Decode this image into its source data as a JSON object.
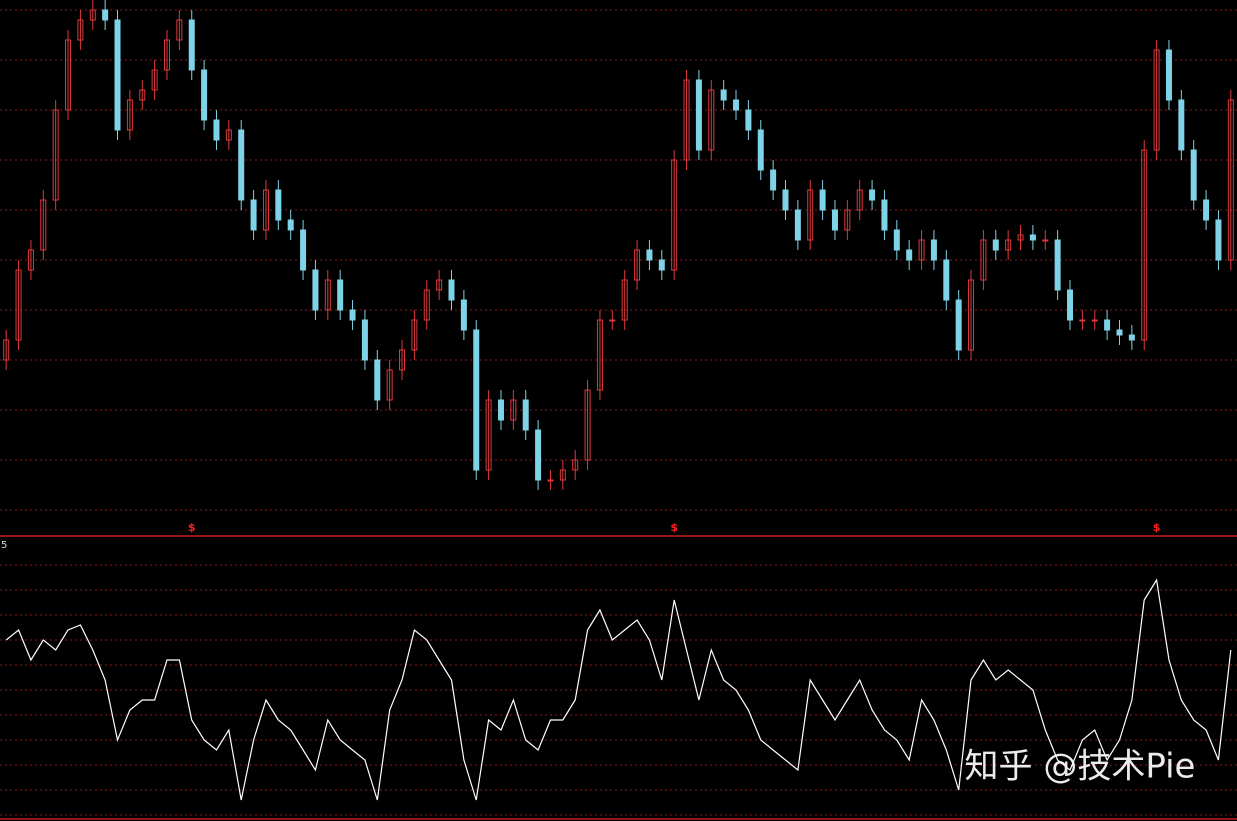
{
  "chart_data": [
    {
      "type": "candlestick",
      "ylim": [
        0,
        107
      ],
      "yticks": [
        5,
        15,
        25,
        35,
        45,
        55,
        65,
        75,
        85,
        95,
        105
      ],
      "grid": true,
      "up_color": "#e0393c",
      "down_color": "#7fd3e6",
      "marker_color": "#ff2020",
      "open": [
        35,
        39,
        53,
        57,
        67,
        85,
        99,
        103,
        105,
        103,
        81,
        87,
        89,
        93,
        99,
        103,
        93,
        83,
        79,
        81,
        67,
        61,
        69,
        63,
        61,
        53,
        45,
        51,
        45,
        43,
        35,
        27,
        33,
        37,
        43,
        49,
        51,
        47,
        41,
        13,
        27,
        23,
        27,
        21,
        11,
        11,
        13,
        15,
        29,
        43,
        43,
        51,
        57,
        55,
        53,
        75,
        91,
        77,
        89,
        87,
        85,
        81,
        73,
        69,
        65,
        59,
        69,
        65,
        61,
        65,
        69,
        67,
        61,
        57,
        55,
        59,
        55,
        47,
        37,
        51,
        59,
        57,
        59,
        60,
        59,
        59,
        49,
        43,
        43,
        43,
        41,
        40,
        39,
        77,
        97,
        87,
        77,
        67,
        63,
        55
      ],
      "high": [
        41,
        55,
        59,
        69,
        87,
        101,
        105,
        107,
        107,
        105,
        89,
        91,
        95,
        101,
        105,
        105,
        95,
        85,
        83,
        83,
        69,
        71,
        71,
        65,
        63,
        55,
        53,
        53,
        47,
        45,
        37,
        35,
        39,
        45,
        51,
        53,
        53,
        49,
        43,
        29,
        29,
        29,
        29,
        23,
        13,
        15,
        17,
        31,
        45,
        45,
        53,
        59,
        59,
        57,
        77,
        93,
        93,
        91,
        91,
        89,
        87,
        83,
        75,
        71,
        67,
        71,
        71,
        67,
        67,
        71,
        71,
        69,
        63,
        59,
        61,
        61,
        57,
        49,
        53,
        61,
        61,
        61,
        62,
        62,
        61,
        61,
        51,
        45,
        45,
        45,
        43,
        42,
        79,
        99,
        99,
        89,
        79,
        69,
        65,
        89
      ],
      "low": [
        33,
        37,
        51,
        55,
        65,
        83,
        97,
        101,
        101,
        79,
        79,
        85,
        87,
        91,
        97,
        91,
        81,
        77,
        77,
        65,
        59,
        59,
        61,
        59,
        51,
        43,
        43,
        43,
        41,
        33,
        25,
        25,
        31,
        35,
        41,
        47,
        45,
        39,
        11,
        11,
        21,
        21,
        19,
        9,
        9,
        9,
        11,
        13,
        27,
        41,
        41,
        49,
        53,
        51,
        51,
        73,
        75,
        75,
        85,
        83,
        79,
        71,
        67,
        63,
        57,
        57,
        63,
        59,
        59,
        63,
        65,
        59,
        55,
        53,
        53,
        53,
        45,
        35,
        35,
        49,
        55,
        55,
        57,
        57,
        57,
        47,
        41,
        41,
        41,
        39,
        38,
        37,
        37,
        75,
        85,
        75,
        65,
        61,
        53,
        53
      ],
      "close": [
        39,
        53,
        57,
        67,
        85,
        99,
        103,
        105,
        103,
        81,
        87,
        89,
        93,
        99,
        103,
        93,
        83,
        79,
        81,
        67,
        61,
        69,
        63,
        61,
        53,
        45,
        51,
        45,
        43,
        35,
        27,
        33,
        37,
        43,
        49,
        51,
        47,
        41,
        13,
        27,
        23,
        27,
        21,
        11,
        11,
        13,
        15,
        29,
        43,
        43,
        51,
        57,
        55,
        53,
        75,
        91,
        77,
        89,
        87,
        85,
        81,
        73,
        69,
        65,
        59,
        69,
        65,
        61,
        65,
        69,
        67,
        61,
        57,
        55,
        59,
        55,
        47,
        37,
        51,
        59,
        57,
        59,
        60,
        59,
        59,
        49,
        43,
        43,
        43,
        41,
        40,
        39,
        77,
        97,
        87,
        77,
        67,
        63,
        55,
        87
      ],
      "markers": [
        {
          "text": "$",
          "index": 15
        },
        {
          "text": "$",
          "index": 54
        },
        {
          "text": "$",
          "index": 93
        }
      ]
    },
    {
      "type": "line",
      "label": "5",
      "ylim": [
        0,
        270
      ],
      "yticks": [
        0,
        25,
        50,
        75,
        100,
        125,
        150,
        175,
        200,
        225,
        250
      ],
      "grid": true,
      "color": "#ffffff",
      "values": [
        175,
        185,
        155,
        175,
        165,
        185,
        190,
        165,
        135,
        75,
        105,
        115,
        115,
        155,
        155,
        95,
        75,
        65,
        85,
        15,
        75,
        115,
        95,
        85,
        65,
        45,
        95,
        75,
        65,
        55,
        15,
        105,
        135,
        185,
        175,
        155,
        135,
        55,
        15,
        95,
        85,
        115,
        75,
        65,
        95,
        95,
        115,
        185,
        205,
        175,
        185,
        195,
        175,
        135,
        215,
        165,
        115,
        165,
        135,
        125,
        105,
        75,
        65,
        55,
        45,
        135,
        115,
        95,
        115,
        135,
        105,
        85,
        75,
        55,
        115,
        95,
        65,
        25,
        135,
        155,
        135,
        145,
        135,
        125,
        85,
        55,
        45,
        75,
        85,
        55,
        75,
        115,
        215,
        235,
        155,
        115,
        95,
        85,
        55,
        165
      ]
    }
  ],
  "watermark": "知乎 @技术Pie"
}
